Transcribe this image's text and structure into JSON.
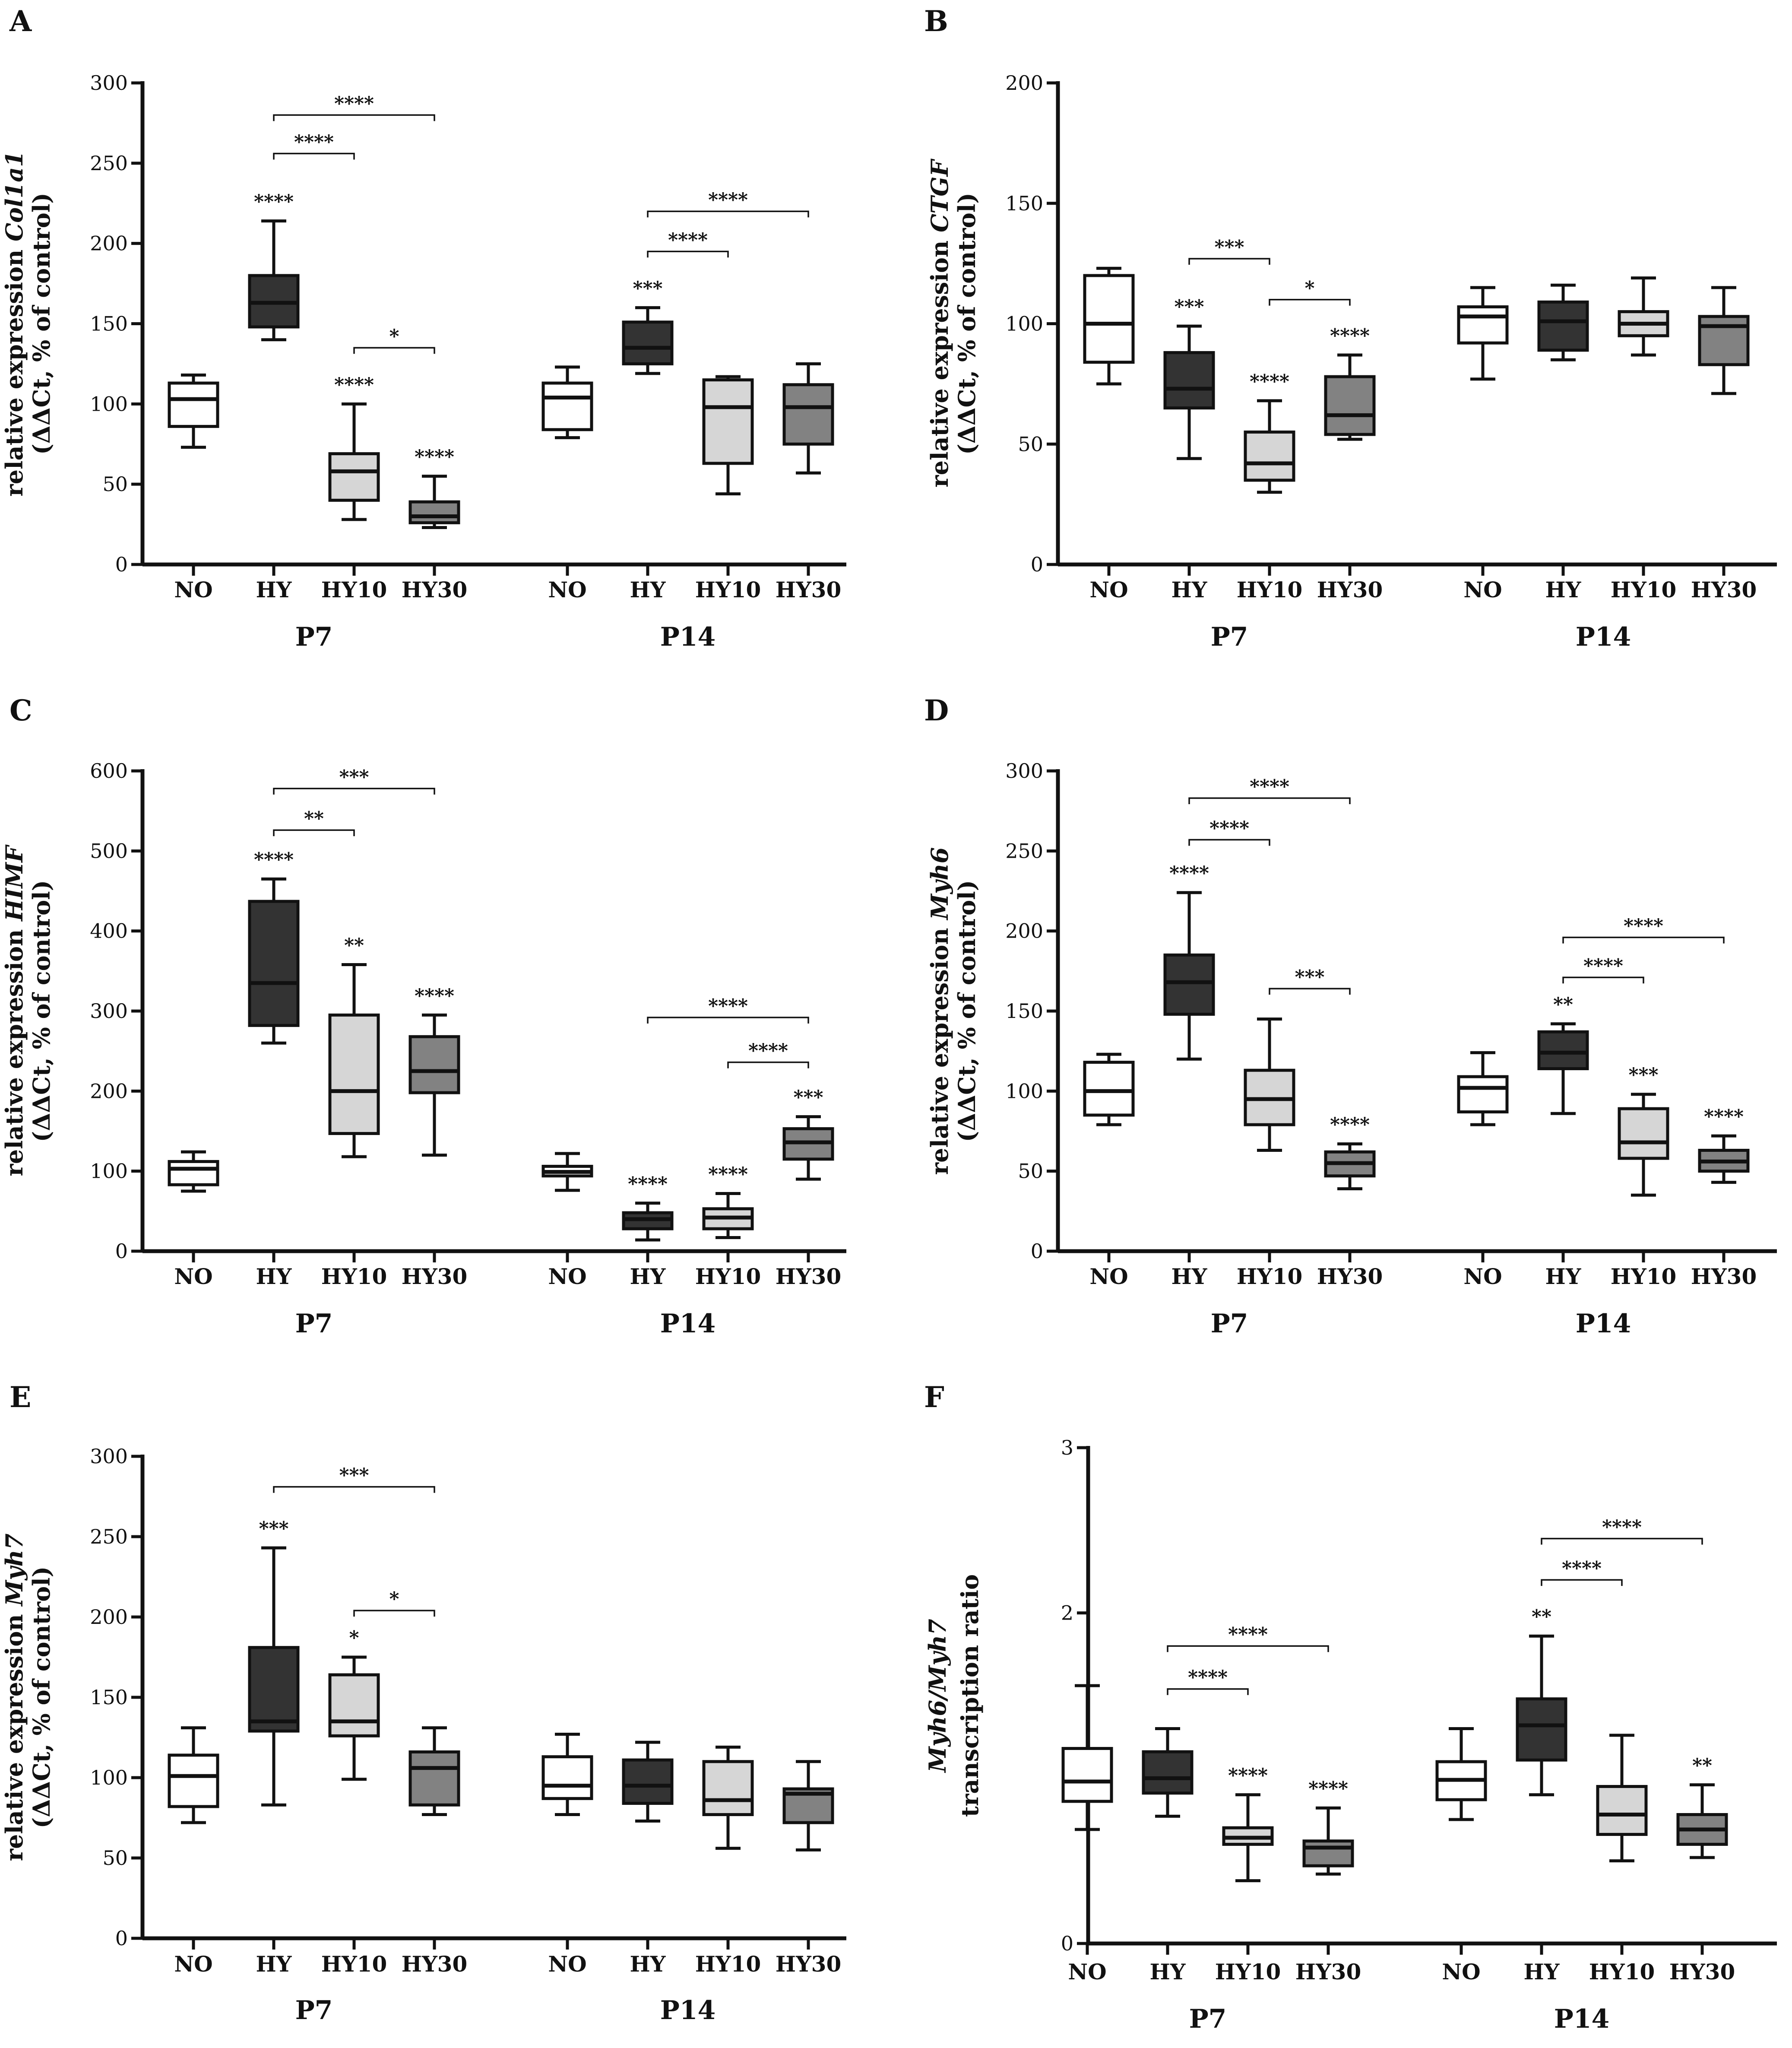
{
  "colors": {
    "NO": "#ffffff",
    "HY": "#333333",
    "HY10": "#d6d6d6",
    "HY30": "#828282",
    "axis": "#111111"
  },
  "chart_data": [
    {
      "type": "box",
      "panel": "A",
      "ylabel_main_prefix": "relative expression ",
      "ylabel_gene": "Col1a1",
      "ylabel_sub": "(ΔΔCt, % of control)",
      "ylim": [
        0,
        300
      ],
      "yticks": [
        0,
        50,
        100,
        150,
        200,
        250,
        300
      ],
      "categories": [
        "NO",
        "HY",
        "HY10",
        "HY30"
      ],
      "periods": [
        "P7",
        "P14"
      ],
      "groups": [
        {
          "period": "P7",
          "category": "NO",
          "min": 73,
          "q1": 86,
          "median": 103,
          "q3": 113,
          "max": 118,
          "sig": ""
        },
        {
          "period": "P7",
          "category": "HY",
          "min": 140,
          "q1": 148,
          "median": 163,
          "q3": 180,
          "max": 214,
          "sig": "****"
        },
        {
          "period": "P7",
          "category": "HY10",
          "min": 28,
          "q1": 40,
          "median": 58,
          "q3": 69,
          "max": 100,
          "sig": "****"
        },
        {
          "period": "P7",
          "category": "HY30",
          "min": 23,
          "q1": 26,
          "median": 30,
          "q3": 39,
          "max": 55,
          "sig": "****"
        },
        {
          "period": "P14",
          "category": "NO",
          "min": 79,
          "q1": 84,
          "median": 104,
          "q3": 113,
          "max": 123,
          "sig": ""
        },
        {
          "period": "P14",
          "category": "HY",
          "min": 119,
          "q1": 125,
          "median": 135,
          "q3": 151,
          "max": 160,
          "sig": "***"
        },
        {
          "period": "P14",
          "category": "HY10",
          "min": 44,
          "q1": 63,
          "median": 98,
          "q3": 115,
          "max": 117,
          "sig": ""
        },
        {
          "period": "P14",
          "category": "HY30",
          "min": 57,
          "q1": 75,
          "median": 98,
          "q3": 112,
          "max": 125,
          "sig": ""
        }
      ],
      "brackets": [
        {
          "period": "P7",
          "from": "HY",
          "to": "HY30",
          "y": 280,
          "label": "****"
        },
        {
          "period": "P7",
          "from": "HY",
          "to": "HY10",
          "y": 256,
          "label": "****"
        },
        {
          "period": "P7",
          "from": "HY10",
          "to": "HY30",
          "y": 135,
          "label": "*"
        },
        {
          "period": "P14",
          "from": "HY",
          "to": "HY30",
          "y": 220,
          "label": "****"
        },
        {
          "period": "P14",
          "from": "HY",
          "to": "HY10",
          "y": 195,
          "label": "****"
        }
      ]
    },
    {
      "type": "box",
      "panel": "B",
      "ylabel_main_prefix": "relative expression ",
      "ylabel_gene": "CTGF",
      "ylabel_sub": "(ΔΔCt, % of control)",
      "ylim": [
        0,
        200
      ],
      "yticks": [
        0,
        50,
        100,
        150,
        200
      ],
      "categories": [
        "NO",
        "HY",
        "HY10",
        "HY30"
      ],
      "periods": [
        "P7",
        "P14"
      ],
      "groups": [
        {
          "period": "P7",
          "category": "NO",
          "min": 75,
          "q1": 84,
          "median": 100,
          "q3": 120,
          "max": 123,
          "sig": ""
        },
        {
          "period": "P7",
          "category": "HY",
          "min": 44,
          "q1": 65,
          "median": 73,
          "q3": 88,
          "max": 99,
          "sig": "***"
        },
        {
          "period": "P7",
          "category": "HY10",
          "min": 30,
          "q1": 35,
          "median": 42,
          "q3": 55,
          "max": 68,
          "sig": "****"
        },
        {
          "period": "P7",
          "category": "HY30",
          "min": 52,
          "q1": 54,
          "median": 62,
          "q3": 78,
          "max": 87,
          "sig": "****"
        },
        {
          "period": "P14",
          "category": "NO",
          "min": 77,
          "q1": 92,
          "median": 103,
          "q3": 107,
          "max": 115,
          "sig": ""
        },
        {
          "period": "P14",
          "category": "HY",
          "min": 85,
          "q1": 89,
          "median": 101,
          "q3": 109,
          "max": 116,
          "sig": ""
        },
        {
          "period": "P14",
          "category": "HY10",
          "min": 87,
          "q1": 95,
          "median": 100,
          "q3": 105,
          "max": 119,
          "sig": ""
        },
        {
          "period": "P14",
          "category": "HY30",
          "min": 71,
          "q1": 83,
          "median": 99,
          "q3": 103,
          "max": 115,
          "sig": ""
        }
      ],
      "brackets": [
        {
          "period": "P7",
          "from": "HY",
          "to": "HY10",
          "y": 127,
          "label": "***"
        },
        {
          "period": "P7",
          "from": "HY10",
          "to": "HY30",
          "y": 110,
          "label": "*"
        }
      ]
    },
    {
      "type": "box",
      "panel": "C",
      "ylabel_main_prefix": "relative expression ",
      "ylabel_gene": "HIMF",
      "ylabel_sub": "(ΔΔCt, % of control)",
      "ylim": [
        0,
        600
      ],
      "yticks": [
        0,
        100,
        200,
        300,
        400,
        500,
        600
      ],
      "categories": [
        "NO",
        "HY",
        "HY10",
        "HY30"
      ],
      "periods": [
        "P7",
        "P14"
      ],
      "groups": [
        {
          "period": "P7",
          "category": "NO",
          "min": 75,
          "q1": 83,
          "median": 103,
          "q3": 112,
          "max": 124,
          "sig": ""
        },
        {
          "period": "P7",
          "category": "HY",
          "min": 260,
          "q1": 282,
          "median": 335,
          "q3": 437,
          "max": 465,
          "sig": "****"
        },
        {
          "period": "P7",
          "category": "HY10",
          "min": 118,
          "q1": 147,
          "median": 200,
          "q3": 295,
          "max": 358,
          "sig": "**"
        },
        {
          "period": "P7",
          "category": "HY30",
          "min": 120,
          "q1": 198,
          "median": 225,
          "q3": 268,
          "max": 295,
          "sig": "****"
        },
        {
          "period": "P14",
          "category": "NO",
          "min": 76,
          "q1": 94,
          "median": 99,
          "q3": 106,
          "max": 122,
          "sig": ""
        },
        {
          "period": "P14",
          "category": "HY",
          "min": 14,
          "q1": 28,
          "median": 40,
          "q3": 48,
          "max": 60,
          "sig": "****"
        },
        {
          "period": "P14",
          "category": "HY10",
          "min": 17,
          "q1": 28,
          "median": 42,
          "q3": 53,
          "max": 72,
          "sig": "****"
        },
        {
          "period": "P14",
          "category": "HY30",
          "min": 90,
          "q1": 115,
          "median": 136,
          "q3": 153,
          "max": 168,
          "sig": "***"
        }
      ],
      "brackets": [
        {
          "period": "P7",
          "from": "HY",
          "to": "HY30",
          "y": 578,
          "label": "***"
        },
        {
          "period": "P7",
          "from": "HY",
          "to": "HY10",
          "y": 526,
          "label": "**"
        },
        {
          "period": "P14",
          "from": "HY",
          "to": "HY30",
          "y": 292,
          "label": "****"
        },
        {
          "period": "P14",
          "from": "HY10",
          "to": "HY30",
          "y": 236,
          "label": "****"
        }
      ]
    },
    {
      "type": "box",
      "panel": "D",
      "ylabel_main_prefix": "relative expression ",
      "ylabel_gene": "Myh6",
      "ylabel_sub": "(ΔΔCt, % of control)",
      "ylim": [
        0,
        300
      ],
      "yticks": [
        0,
        50,
        100,
        150,
        200,
        250,
        300
      ],
      "categories": [
        "NO",
        "HY",
        "HY10",
        "HY30"
      ],
      "periods": [
        "P7",
        "P14"
      ],
      "groups": [
        {
          "period": "P7",
          "category": "NO",
          "min": 79,
          "q1": 85,
          "median": 100,
          "q3": 118,
          "max": 123,
          "sig": ""
        },
        {
          "period": "P7",
          "category": "HY",
          "min": 120,
          "q1": 148,
          "median": 168,
          "q3": 185,
          "max": 224,
          "sig": "****"
        },
        {
          "period": "P7",
          "category": "HY10",
          "min": 63,
          "q1": 79,
          "median": 95,
          "q3": 113,
          "max": 145,
          "sig": ""
        },
        {
          "period": "P7",
          "category": "HY30",
          "min": 39,
          "q1": 47,
          "median": 55,
          "q3": 62,
          "max": 67,
          "sig": "****"
        },
        {
          "period": "P14",
          "category": "NO",
          "min": 79,
          "q1": 87,
          "median": 102,
          "q3": 109,
          "max": 124,
          "sig": ""
        },
        {
          "period": "P14",
          "category": "HY",
          "min": 86,
          "q1": 114,
          "median": 124,
          "q3": 137,
          "max": 142,
          "sig": "**"
        },
        {
          "period": "P14",
          "category": "HY10",
          "min": 35,
          "q1": 58,
          "median": 68,
          "q3": 89,
          "max": 98,
          "sig": "***"
        },
        {
          "period": "P14",
          "category": "HY30",
          "min": 43,
          "q1": 50,
          "median": 56,
          "q3": 63,
          "max": 72,
          "sig": "****"
        }
      ],
      "brackets": [
        {
          "period": "P7",
          "from": "HY",
          "to": "HY30",
          "y": 283,
          "label": "****"
        },
        {
          "period": "P7",
          "from": "HY",
          "to": "HY10",
          "y": 257,
          "label": "****"
        },
        {
          "period": "P7",
          "from": "HY10",
          "to": "HY30",
          "y": 164,
          "label": "***"
        },
        {
          "period": "P14",
          "from": "HY",
          "to": "HY30",
          "y": 196,
          "label": "****"
        },
        {
          "period": "P14",
          "from": "HY",
          "to": "HY10",
          "y": 171,
          "label": "****"
        }
      ]
    },
    {
      "type": "box",
      "panel": "E",
      "ylabel_main_prefix": "relative expression ",
      "ylabel_gene": "Myh7",
      "ylabel_sub": "(ΔΔCt, % of control)",
      "ylim": [
        0,
        300
      ],
      "yticks": [
        0,
        50,
        100,
        150,
        200,
        250,
        300
      ],
      "categories": [
        "NO",
        "HY",
        "HY10",
        "HY30"
      ],
      "periods": [
        "P7",
        "P14"
      ],
      "groups": [
        {
          "period": "P7",
          "category": "NO",
          "min": 72,
          "q1": 82,
          "median": 101,
          "q3": 114,
          "max": 131,
          "sig": ""
        },
        {
          "period": "P7",
          "category": "HY",
          "min": 83,
          "q1": 129,
          "median": 135,
          "q3": 181,
          "max": 243,
          "sig": "***"
        },
        {
          "period": "P7",
          "category": "HY10",
          "min": 99,
          "q1": 126,
          "median": 135,
          "q3": 164,
          "max": 175,
          "sig": "*"
        },
        {
          "period": "P7",
          "category": "HY30",
          "min": 77,
          "q1": 83,
          "median": 106,
          "q3": 116,
          "max": 131,
          "sig": ""
        },
        {
          "period": "P14",
          "category": "NO",
          "min": 77,
          "q1": 87,
          "median": 95,
          "q3": 113,
          "max": 127,
          "sig": ""
        },
        {
          "period": "P14",
          "category": "HY",
          "min": 73,
          "q1": 84,
          "median": 95,
          "q3": 111,
          "max": 122,
          "sig": ""
        },
        {
          "period": "P14",
          "category": "HY10",
          "min": 56,
          "q1": 77,
          "median": 86,
          "q3": 110,
          "max": 119,
          "sig": ""
        },
        {
          "period": "P14",
          "category": "HY30",
          "min": 55,
          "q1": 72,
          "median": 90,
          "q3": 93,
          "max": 110,
          "sig": ""
        }
      ],
      "brackets": [
        {
          "period": "P7",
          "from": "HY",
          "to": "HY30",
          "y": 281,
          "label": "***"
        },
        {
          "period": "P7",
          "from": "HY10",
          "to": "HY30",
          "y": 204,
          "label": "*"
        }
      ]
    },
    {
      "type": "box",
      "panel": "F",
      "ylabel_gene": "Myh6/Myh7",
      "ylabel_sub": "transcription ratio",
      "ylim": [
        0,
        3
      ],
      "yticks": [
        0,
        1,
        2,
        3
      ],
      "categories": [
        "NO",
        "HY",
        "HY10",
        "HY30"
      ],
      "periods": [
        "P7",
        "P14"
      ],
      "groups": [
        {
          "period": "P7",
          "category": "NO",
          "min": 0.69,
          "q1": 0.86,
          "median": 0.98,
          "q3": 1.18,
          "max": 1.56,
          "sig": ""
        },
        {
          "period": "P7",
          "category": "HY",
          "min": 0.77,
          "q1": 0.91,
          "median": 1.0,
          "q3": 1.16,
          "max": 1.3,
          "sig": ""
        },
        {
          "period": "P7",
          "category": "HY10",
          "min": 0.38,
          "q1": 0.6,
          "median": 0.64,
          "q3": 0.7,
          "max": 0.9,
          "sig": "****"
        },
        {
          "period": "P7",
          "category": "HY30",
          "min": 0.42,
          "q1": 0.47,
          "median": 0.58,
          "q3": 0.62,
          "max": 0.82,
          "sig": "****"
        },
        {
          "period": "P14",
          "category": "NO",
          "min": 0.75,
          "q1": 0.87,
          "median": 0.99,
          "q3": 1.1,
          "max": 1.3,
          "sig": ""
        },
        {
          "period": "P14",
          "category": "HY",
          "min": 0.9,
          "q1": 1.11,
          "median": 1.32,
          "q3": 1.48,
          "max": 1.86,
          "sig": "**"
        },
        {
          "period": "P14",
          "category": "HY10",
          "min": 0.5,
          "q1": 0.66,
          "median": 0.78,
          "q3": 0.95,
          "max": 1.26,
          "sig": ""
        },
        {
          "period": "P14",
          "category": "HY30",
          "min": 0.52,
          "q1": 0.6,
          "median": 0.69,
          "q3": 0.78,
          "max": 0.96,
          "sig": "**"
        }
      ],
      "brackets": [
        {
          "period": "P7",
          "from": "HY",
          "to": "HY30",
          "y": 1.8,
          "label": "****"
        },
        {
          "period": "P7",
          "from": "HY",
          "to": "HY10",
          "y": 1.54,
          "label": "****"
        },
        {
          "period": "P14",
          "from": "HY",
          "to": "HY30",
          "y": 2.45,
          "label": "****"
        },
        {
          "period": "P14",
          "from": "HY",
          "to": "HY10",
          "y": 2.2,
          "label": "****"
        }
      ]
    }
  ]
}
